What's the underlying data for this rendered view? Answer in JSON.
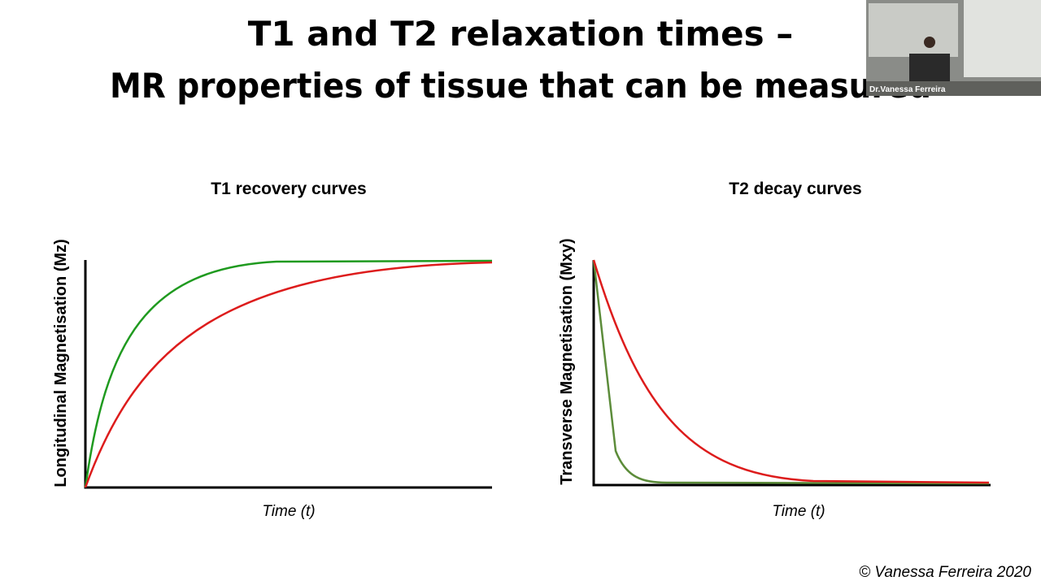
{
  "slide": {
    "title_line1": "T1 and T2 relaxation times –",
    "title_line2": "MR properties of tissue that can be measured",
    "left_panel": {
      "title": "T1 recovery curves",
      "y_label": "Longitudinal Magnetisation (Mz)",
      "x_label": "Time (t)"
    },
    "right_panel": {
      "title": "T2 decay curves",
      "y_label": "Transverse Magnetisation (Mxy)",
      "x_label": "Time (t)"
    },
    "copyright": "© Vanessa Ferreira 2020"
  },
  "webcam": {
    "label": "Dr.Vanessa Ferreira"
  }
}
